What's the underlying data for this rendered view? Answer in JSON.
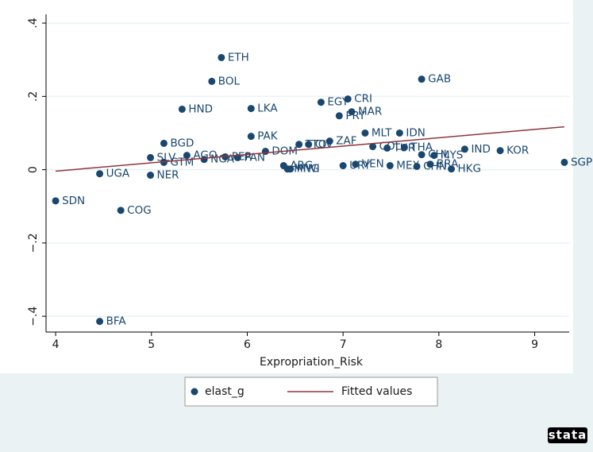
{
  "chart_data": {
    "type": "scatter",
    "xlabel": "Expropriation_Risk",
    "xlim": [
      3.9,
      9.36
    ],
    "ylim": [
      -0.443,
      0.424
    ],
    "xticks": [
      4,
      5,
      6,
      7,
      8,
      9
    ],
    "yticks": [
      {
        "value": -0.4,
        "label": "−.4"
      },
      {
        "value": -0.2,
        "label": "−.2"
      },
      0,
      {
        "value": 0.2,
        "label": ".2"
      },
      {
        "value": 0.4,
        "label": ".4"
      }
    ],
    "grid": true,
    "legend": "bottom",
    "logo": "stata",
    "series": [
      {
        "name": "elast_g",
        "color": "#1a476f",
        "labels": [
          "ETH",
          "BOL",
          "GAB",
          "CRI",
          "EGY",
          "MAR",
          "PRY",
          "HND",
          "LKA",
          "PAK",
          "MLT",
          "IDN",
          "ZAF",
          "BGD",
          "TTO",
          "CIV",
          "DOM",
          "COL",
          "TUR",
          "THA",
          "CHL",
          "MYS",
          "IND",
          "KOR",
          "SGP",
          "AGO",
          "SLV",
          "GTM",
          "NGA",
          "PER",
          "PAN",
          "ARG",
          "MNG",
          "MWI",
          "URY",
          "VEN",
          "MEX",
          "CHN",
          "BRA",
          "HKG",
          "UGA",
          "NER",
          "SDN",
          "COG",
          "BFA"
        ],
        "x": [
          5.73,
          5.63,
          7.82,
          7.05,
          6.77,
          7.09,
          6.96,
          5.32,
          6.04,
          6.04,
          7.23,
          7.59,
          6.86,
          5.13,
          6.54,
          6.64,
          6.19,
          7.31,
          7.46,
          7.64,
          7.82,
          7.95,
          8.27,
          8.64,
          9.31,
          5.37,
          4.99,
          5.13,
          5.55,
          5.77,
          5.9,
          6.38,
          6.42,
          6.45,
          7.0,
          7.13,
          7.49,
          7.77,
          7.91,
          8.13,
          4.46,
          4.99,
          4.0,
          4.68,
          4.46
        ],
        "values": [
          0.306,
          0.241,
          0.247,
          0.193,
          0.184,
          0.158,
          0.147,
          0.165,
          0.167,
          0.091,
          0.1,
          0.1,
          0.078,
          0.072,
          0.069,
          0.069,
          0.05,
          0.063,
          0.059,
          0.061,
          0.041,
          0.039,
          0.056,
          0.052,
          0.02,
          0.039,
          0.033,
          0.02,
          0.028,
          0.035,
          0.033,
          0.011,
          0.002,
          0.002,
          0.011,
          0.015,
          0.011,
          0.009,
          0.015,
          0.002,
          -0.011,
          -0.015,
          -0.085,
          -0.111,
          -0.414
        ]
      },
      {
        "name": "Fitted values",
        "type": "line",
        "color": "#90353b",
        "x": [
          4,
          9.31
        ],
        "values": [
          -0.004,
          0.117
        ]
      }
    ]
  }
}
